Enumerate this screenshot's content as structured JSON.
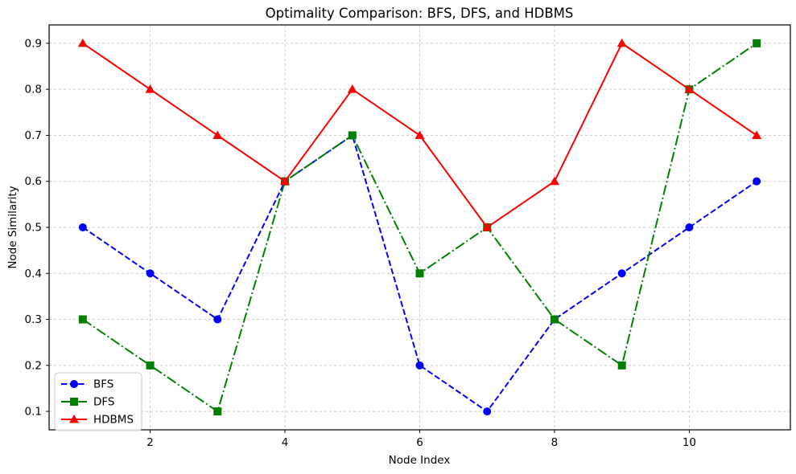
{
  "chart_data": {
    "type": "line",
    "title": "Optimality Comparison: BFS, DFS, and HDBMS",
    "xlabel": "Node Index",
    "ylabel": "Node Similarity",
    "x": [
      1,
      2,
      3,
      4,
      5,
      6,
      7,
      8,
      9,
      10,
      11
    ],
    "series": [
      {
        "name": "BFS",
        "color": "#0000ff",
        "linestyle": "dashed",
        "marker": "circle",
        "values": [
          0.5,
          0.4,
          0.3,
          0.6,
          0.7,
          0.2,
          0.1,
          0.3,
          0.4,
          0.5,
          0.6
        ]
      },
      {
        "name": "DFS",
        "color": "#008000",
        "linestyle": "dashdot",
        "marker": "square",
        "values": [
          0.3,
          0.2,
          0.1,
          0.6,
          0.7,
          0.4,
          0.5,
          0.3,
          0.2,
          0.8,
          0.9
        ]
      },
      {
        "name": "HDBMS",
        "color": "#ff0000",
        "linestyle": "solid",
        "marker": "triangle",
        "values": [
          0.9,
          0.8,
          0.7,
          0.6,
          0.8,
          0.7,
          0.5,
          0.6,
          0.9,
          0.8,
          0.7
        ]
      }
    ],
    "xticks": [
      2,
      4,
      6,
      8,
      10
    ],
    "xtick_labels": [
      "2",
      "4",
      "6",
      "8",
      "10"
    ],
    "yticks": [
      0.1,
      0.2,
      0.3,
      0.4,
      0.5,
      0.6,
      0.7,
      0.8,
      0.9
    ],
    "ytick_labels": [
      "0.1",
      "0.2",
      "0.3",
      "0.4",
      "0.5",
      "0.6",
      "0.7",
      "0.8",
      "0.9"
    ],
    "xlim": [
      0.5,
      11.5
    ],
    "ylim": [
      0.06,
      0.94
    ],
    "grid": true,
    "grid_color": "#c9c9c9",
    "axis_color": "#000000",
    "background_color": "#ffffff",
    "legend_position": "lower left"
  }
}
